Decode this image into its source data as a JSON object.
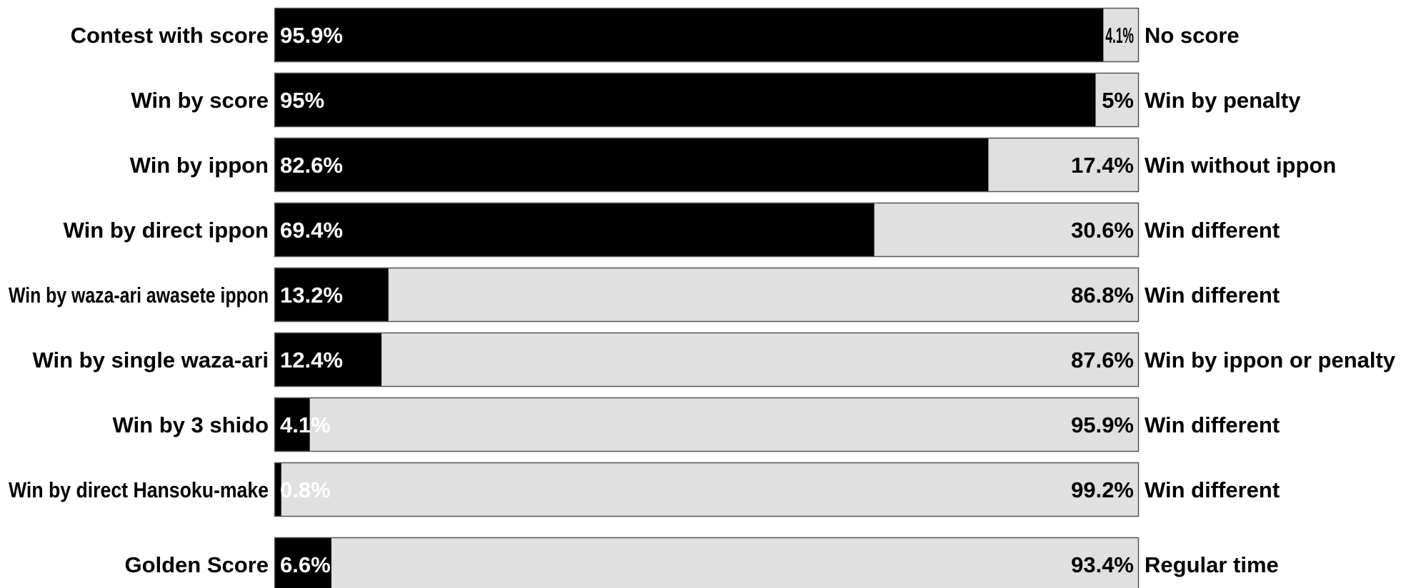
{
  "chart_data": {
    "type": "bar",
    "stacked": true,
    "orientation": "horizontal",
    "xlim": [
      0,
      100
    ],
    "grid": false,
    "legend": "none",
    "colors": {
      "primary": "#000000",
      "secondary": "#e0e0e0",
      "border": "#555555"
    },
    "rows": [
      {
        "left_label": "Contest with score",
        "left_value": 95.9,
        "right_value": 4.1,
        "left_text": "95.9%",
        "right_text": "4.1%",
        "right_label": "No score"
      },
      {
        "left_label": "Win by score",
        "left_value": 95.0,
        "right_value": 5.0,
        "left_text": "95%",
        "right_text": "5%",
        "right_label": "Win by penalty"
      },
      {
        "left_label": "Win by ippon",
        "left_value": 82.6,
        "right_value": 17.4,
        "left_text": "82.6%",
        "right_text": "17.4%",
        "right_label": "Win without ippon"
      },
      {
        "left_label": "Win by direct ippon",
        "left_value": 69.4,
        "right_value": 30.6,
        "left_text": "69.4%",
        "right_text": "30.6%",
        "right_label": "Win different"
      },
      {
        "left_label": "Win by waza-ari awasete ippon",
        "left_value": 13.2,
        "right_value": 86.8,
        "left_text": "13.2%",
        "right_text": "86.8%",
        "right_label": "Win different"
      },
      {
        "left_label": "Win by single waza-ari",
        "left_value": 12.4,
        "right_value": 87.6,
        "left_text": "12.4%",
        "right_text": "87.6%",
        "right_label": "Win by ippon or penalty"
      },
      {
        "left_label": "Win by 3 shido",
        "left_value": 4.1,
        "right_value": 95.9,
        "left_text": "4.1%",
        "right_text": "95.9%",
        "right_label": "Win different"
      },
      {
        "left_label": "Win by direct Hansoku-make",
        "left_value": 0.8,
        "right_value": 99.2,
        "left_text": "0.8%",
        "right_text": "99.2%",
        "right_label": "Win different"
      },
      {
        "left_label": "Golden Score",
        "left_value": 6.6,
        "right_value": 93.4,
        "left_text": "6.6%",
        "right_text": "93.4%",
        "right_label": "Regular time"
      }
    ]
  }
}
